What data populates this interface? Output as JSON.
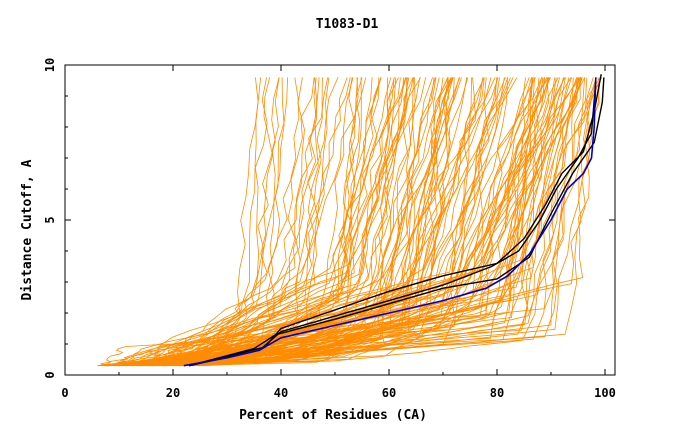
{
  "chart_data": {
    "type": "line",
    "title": "T1083-D1",
    "xlabel": "Percent of Residues (CA)",
    "ylabel": "Distance Cutoff, A",
    "xlim": [
      0,
      100
    ],
    "ylim": [
      0,
      10
    ],
    "x_ticks": [
      "0",
      "20",
      "40",
      "60",
      "80",
      "100"
    ],
    "y_ticks": [
      "0",
      "5",
      "10"
    ],
    "grid": false,
    "legend": "none",
    "colors": {
      "background_curves": "#ff8c00",
      "black_curves": "#000000",
      "highlight_curve": "#0000cc"
    },
    "highlight_series": [
      {
        "x": 22,
        "y": 0.3
      },
      {
        "x": 30,
        "y": 0.55
      },
      {
        "x": 36,
        "y": 0.8
      },
      {
        "x": 40,
        "y": 1.2
      },
      {
        "x": 50,
        "y": 1.6
      },
      {
        "x": 60,
        "y": 2.0
      },
      {
        "x": 70,
        "y": 2.4
      },
      {
        "x": 78,
        "y": 2.8
      },
      {
        "x": 82,
        "y": 3.2
      },
      {
        "x": 86,
        "y": 3.9
      },
      {
        "x": 90,
        "y": 5.0
      },
      {
        "x": 93,
        "y": 6.0
      },
      {
        "x": 96,
        "y": 6.5
      },
      {
        "x": 97.5,
        "y": 7.0
      },
      {
        "x": 98,
        "y": 8.0
      },
      {
        "x": 98.3,
        "y": 9.6
      }
    ],
    "black_series": [
      [
        {
          "x": 23,
          "y": 0.3
        },
        {
          "x": 36,
          "y": 0.8
        },
        {
          "x": 40,
          "y": 1.4
        },
        {
          "x": 50,
          "y": 1.9
        },
        {
          "x": 60,
          "y": 2.4
        },
        {
          "x": 70,
          "y": 2.9
        },
        {
          "x": 79,
          "y": 3.5
        },
        {
          "x": 84,
          "y": 4.0
        },
        {
          "x": 88,
          "y": 5.0
        },
        {
          "x": 91,
          "y": 6.0
        },
        {
          "x": 95,
          "y": 7.0
        },
        {
          "x": 97.5,
          "y": 7.8
        },
        {
          "x": 98.3,
          "y": 9.5
        }
      ],
      [
        {
          "x": 23,
          "y": 0.3
        },
        {
          "x": 37,
          "y": 0.9
        },
        {
          "x": 40,
          "y": 1.5
        },
        {
          "x": 50,
          "y": 2.1
        },
        {
          "x": 60,
          "y": 2.7
        },
        {
          "x": 70,
          "y": 3.2
        },
        {
          "x": 80,
          "y": 3.6
        },
        {
          "x": 85,
          "y": 4.4
        },
        {
          "x": 89,
          "y": 5.5
        },
        {
          "x": 92,
          "y": 6.5
        },
        {
          "x": 96,
          "y": 7.2
        },
        {
          "x": 98,
          "y": 8.5
        },
        {
          "x": 99.3,
          "y": 9.7
        }
      ],
      [
        {
          "x": 23,
          "y": 0.3
        },
        {
          "x": 35,
          "y": 0.85
        },
        {
          "x": 39,
          "y": 1.3
        },
        {
          "x": 50,
          "y": 1.8
        },
        {
          "x": 60,
          "y": 2.3
        },
        {
          "x": 70,
          "y": 2.8
        },
        {
          "x": 80,
          "y": 3.1
        },
        {
          "x": 86,
          "y": 3.8
        },
        {
          "x": 90,
          "y": 5.2
        },
        {
          "x": 94,
          "y": 6.5
        },
        {
          "x": 98,
          "y": 7.5
        },
        {
          "x": 99.5,
          "y": 8.8
        },
        {
          "x": 99.8,
          "y": 9.6
        }
      ]
    ]
  }
}
